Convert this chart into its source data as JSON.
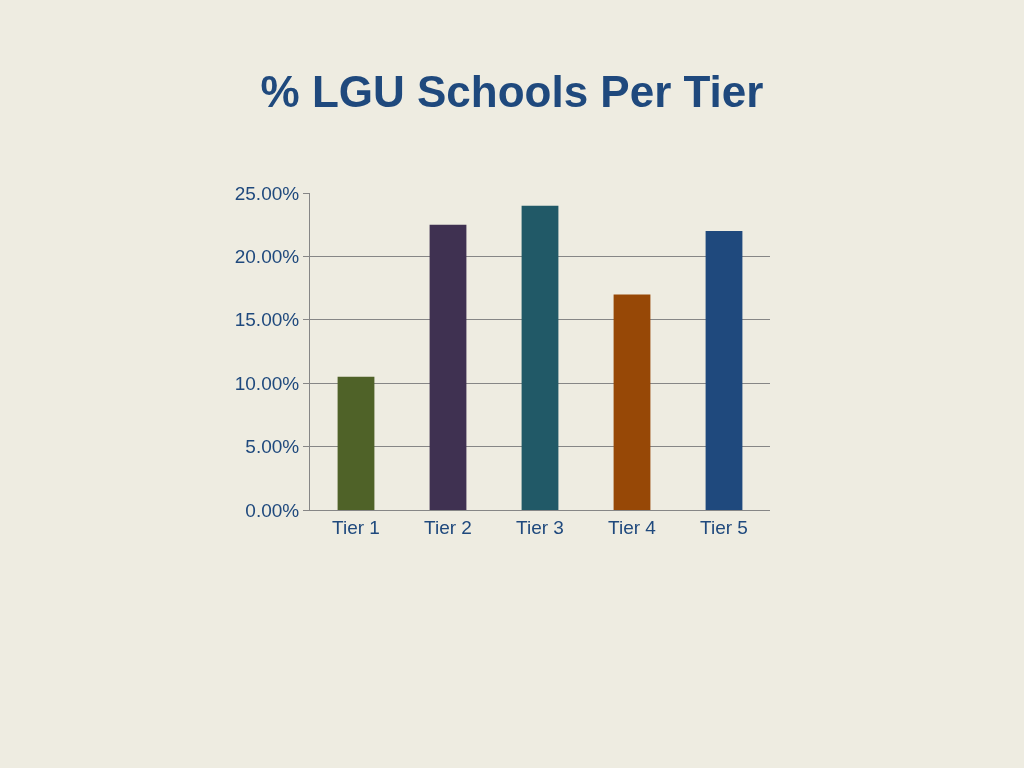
{
  "chart_data": {
    "type": "bar",
    "title": "% LGU Schools Per Tier",
    "categories": [
      "Tier 1",
      "Tier 2",
      "Tier 3",
      "Tier 4",
      "Tier 5"
    ],
    "values": [
      10.5,
      22.5,
      24.0,
      17.0,
      22.0
    ],
    "colors": [
      "#4f6228",
      "#3f3151",
      "#215967",
      "#974806",
      "#1f497d"
    ],
    "ylim": [
      0,
      25
    ],
    "yticks": [
      {
        "value": 0,
        "label": "0.00%"
      },
      {
        "value": 5,
        "label": "5.00%"
      },
      {
        "value": 10,
        "label": "10.00%"
      },
      {
        "value": 15,
        "label": "15.00%"
      },
      {
        "value": 20,
        "label": "20.00%"
      },
      {
        "value": 25,
        "label": "25.00%"
      }
    ],
    "grid": "y"
  }
}
